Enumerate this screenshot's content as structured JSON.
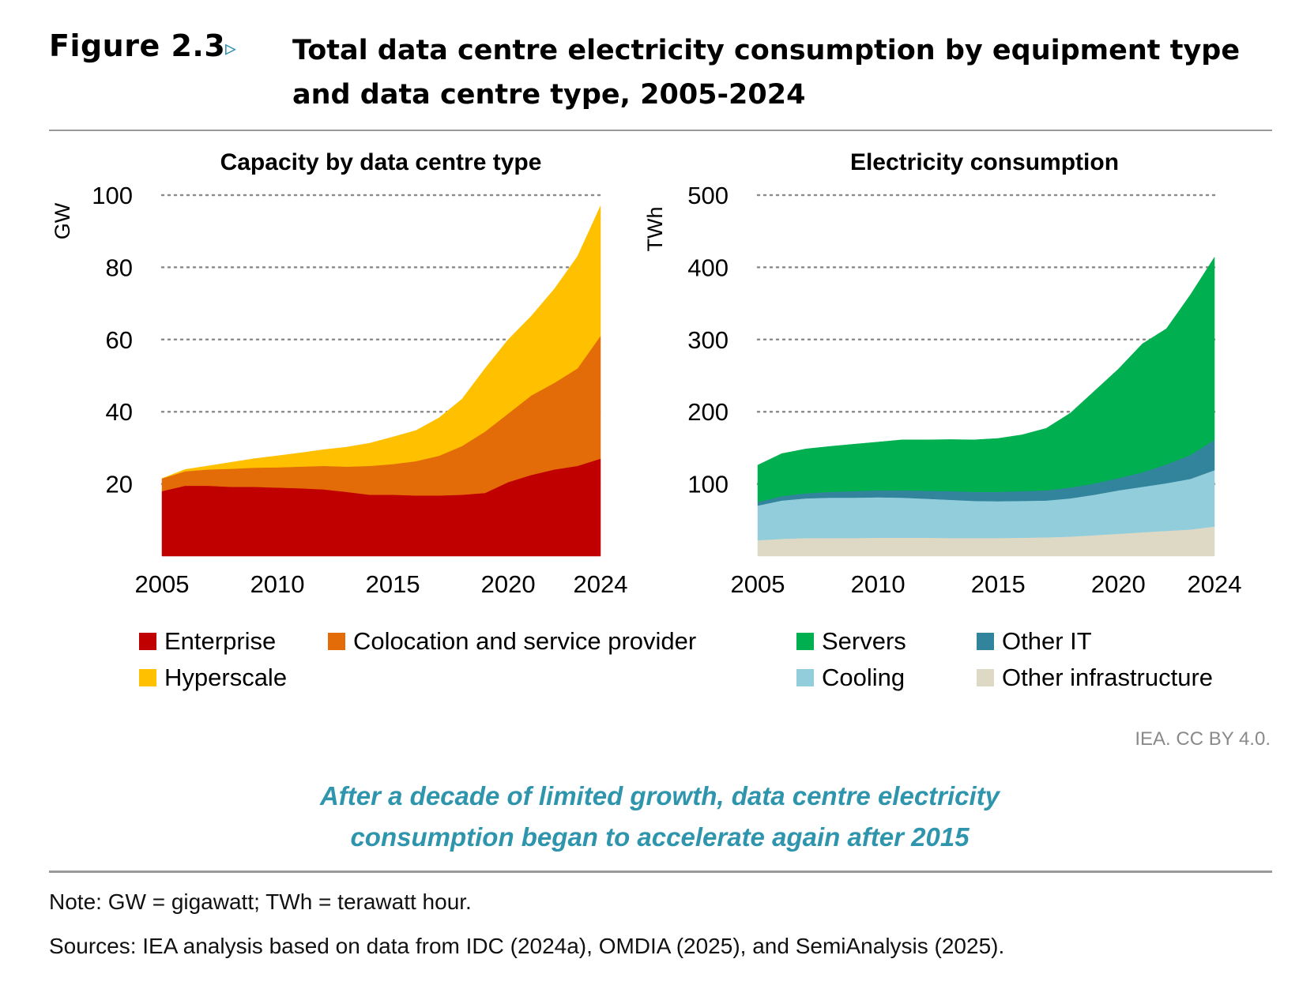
{
  "header": {
    "figure_label": "Figure 2.3",
    "arrow_glyph": "▹",
    "title": "Total data centre electricity consumption by equipment type and data centre type, 2005-2024"
  },
  "chart_data": [
    {
      "type": "area",
      "stacked": true,
      "title": "Capacity by data centre type",
      "xlabel": "",
      "ylabel": "GW",
      "x": [
        2005,
        2006,
        2007,
        2008,
        2009,
        2010,
        2011,
        2012,
        2013,
        2014,
        2015,
        2016,
        2017,
        2018,
        2019,
        2020,
        2021,
        2022,
        2023,
        2024
      ],
      "xticks": [
        "2005",
        "2010",
        "2015",
        "2020",
        "2024"
      ],
      "xtick_values": [
        2005,
        2010,
        2015,
        2020,
        2024
      ],
      "yticks": [
        "20",
        "40",
        "60",
        "80",
        "100"
      ],
      "ytick_values": [
        20,
        40,
        60,
        80,
        100
      ],
      "ylim": [
        0,
        100
      ],
      "grid": true,
      "series": [
        {
          "name": "Enterprise",
          "color": "#c00000",
          "values": [
            18,
            19.5,
            19.5,
            19.2,
            19.2,
            19,
            18.8,
            18.5,
            17.8,
            17,
            17,
            16.8,
            16.8,
            17,
            17.5,
            20.5,
            22.5,
            24,
            25,
            27
          ]
        },
        {
          "name": "Colocation and service provider",
          "color": "#e36c09",
          "values": [
            3.5,
            4,
            4.5,
            5,
            5.3,
            5.6,
            6,
            6.5,
            7,
            8,
            8.5,
            9.5,
            11,
            13.5,
            17,
            19,
            22,
            24,
            27,
            34
          ]
        },
        {
          "name": "Hyperscale",
          "color": "#ffc000",
          "values": [
            0,
            0.5,
            1,
            1.8,
            2.5,
            3.2,
            3.8,
            4.5,
            5.4,
            6.3,
            7.5,
            8.5,
            10.5,
            13,
            17.5,
            20.5,
            22,
            26,
            31,
            36
          ]
        }
      ],
      "legend": "bottom"
    },
    {
      "type": "area",
      "stacked": true,
      "title": "Electricity consumption",
      "xlabel": "",
      "ylabel": "TWh",
      "x": [
        2005,
        2006,
        2007,
        2008,
        2009,
        2010,
        2011,
        2012,
        2013,
        2014,
        2015,
        2016,
        2017,
        2018,
        2019,
        2020,
        2021,
        2022,
        2023,
        2024
      ],
      "xticks": [
        "2005",
        "2010",
        "2015",
        "2020",
        "2024"
      ],
      "xtick_values": [
        2005,
        2010,
        2015,
        2020,
        2024
      ],
      "yticks": [
        "100",
        "200",
        "300",
        "400",
        "500"
      ],
      "ytick_values": [
        100,
        200,
        300,
        400,
        500
      ],
      "ylim": [
        0,
        500
      ],
      "grid": true,
      "series": [
        {
          "name": "Other infrastructure",
          "color": "#ddd9c4",
          "values": [
            22,
            24,
            25,
            25,
            25,
            25.5,
            25.5,
            25.5,
            25,
            25,
            25,
            25.5,
            26,
            27,
            29,
            31,
            33,
            35,
            37,
            41
          ]
        },
        {
          "name": "Cooling",
          "color": "#92cddc",
          "values": [
            48,
            53,
            55,
            56,
            56,
            56,
            55.5,
            54,
            53,
            51.5,
            51,
            51,
            51,
            53,
            56,
            60,
            63,
            66,
            70,
            78
          ]
        },
        {
          "name": "Other IT",
          "color": "#31849b",
          "values": [
            5,
            6,
            7,
            8,
            9,
            9.5,
            10,
            11,
            12,
            12.5,
            13,
            13.5,
            14,
            15,
            15.5,
            17,
            20,
            26,
            33,
            42
          ]
        },
        {
          "name": "Servers",
          "color": "#00b050",
          "values": [
            51,
            59,
            61.5,
            63,
            65,
            67,
            70,
            70.5,
            71.5,
            72,
            74,
            78,
            86,
            103,
            128,
            151,
            178,
            188,
            222,
            253
          ]
        }
      ],
      "legend": "bottom"
    }
  ],
  "credit": "IEA. CC BY 4.0.",
  "takeaway": {
    "line1": "After a decade of limited growth, data centre electricity",
    "line2": "consumption began to accelerate again after 2015"
  },
  "footer": {
    "note": "Note: GW = gigawatt; TWh = terawatt hour.",
    "sources": "Sources: IEA analysis based on data from IDC (2024a), OMDIA (2025), and SemiAnalysis (2025)."
  }
}
